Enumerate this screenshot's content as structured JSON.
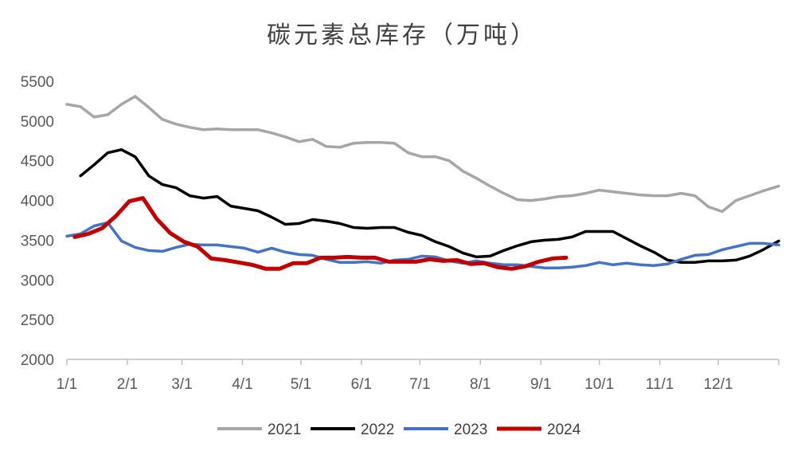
{
  "chart_data": {
    "type": "line",
    "title": "碳元素总库存（万吨）",
    "xlabel": "",
    "ylabel": "",
    "ylim": [
      2000,
      5500
    ],
    "y_ticks": [
      2000,
      2500,
      3000,
      3500,
      4000,
      4500,
      5000,
      5500
    ],
    "x_axis": {
      "unit": "day_of_year",
      "range": [
        1,
        366
      ]
    },
    "x_tick_labels": [
      {
        "label": "1/1",
        "day": 1
      },
      {
        "label": "2/1",
        "day": 32
      },
      {
        "label": "3/1",
        "day": 60
      },
      {
        "label": "4/1",
        "day": 91
      },
      {
        "label": "5/1",
        "day": 121
      },
      {
        "label": "6/1",
        "day": 152
      },
      {
        "label": "7/1",
        "day": 182
      },
      {
        "label": "8/1",
        "day": 213
      },
      {
        "label": "9/1",
        "day": 244
      },
      {
        "label": "10/1",
        "day": 274
      },
      {
        "label": "11/1",
        "day": 305
      },
      {
        "label": "12/1",
        "day": 335
      }
    ],
    "legend_position": "bottom",
    "grid": false,
    "series": [
      {
        "name": "2021",
        "color": "#a6a6a6",
        "points": [
          [
            1,
            5210
          ],
          [
            8,
            5180
          ],
          [
            15,
            5050
          ],
          [
            22,
            5080
          ],
          [
            29,
            5210
          ],
          [
            36,
            5310
          ],
          [
            43,
            5170
          ],
          [
            50,
            5020
          ],
          [
            57,
            4960
          ],
          [
            64,
            4920
          ],
          [
            71,
            4890
          ],
          [
            78,
            4900
          ],
          [
            85,
            4890
          ],
          [
            92,
            4890
          ],
          [
            99,
            4890
          ],
          [
            106,
            4850
          ],
          [
            113,
            4800
          ],
          [
            120,
            4740
          ],
          [
            127,
            4770
          ],
          [
            134,
            4680
          ],
          [
            141,
            4670
          ],
          [
            148,
            4720
          ],
          [
            155,
            4730
          ],
          [
            162,
            4730
          ],
          [
            169,
            4720
          ],
          [
            176,
            4600
          ],
          [
            183,
            4550
          ],
          [
            190,
            4550
          ],
          [
            197,
            4500
          ],
          [
            204,
            4370
          ],
          [
            211,
            4280
          ],
          [
            218,
            4180
          ],
          [
            225,
            4090
          ],
          [
            232,
            4010
          ],
          [
            239,
            4000
          ],
          [
            246,
            4020
          ],
          [
            253,
            4050
          ],
          [
            260,
            4060
          ],
          [
            267,
            4090
          ],
          [
            274,
            4130
          ],
          [
            281,
            4110
          ],
          [
            288,
            4090
          ],
          [
            295,
            4070
          ],
          [
            302,
            4060
          ],
          [
            309,
            4060
          ],
          [
            316,
            4090
          ],
          [
            323,
            4060
          ],
          [
            330,
            3920
          ],
          [
            337,
            3860
          ],
          [
            344,
            4000
          ],
          [
            351,
            4060
          ],
          [
            358,
            4120
          ],
          [
            366,
            4180
          ]
        ]
      },
      {
        "name": "2022",
        "color": "#000000",
        "points": [
          [
            8,
            4310
          ],
          [
            15,
            4450
          ],
          [
            22,
            4600
          ],
          [
            29,
            4640
          ],
          [
            36,
            4550
          ],
          [
            43,
            4310
          ],
          [
            50,
            4200
          ],
          [
            57,
            4160
          ],
          [
            64,
            4060
          ],
          [
            71,
            4030
          ],
          [
            78,
            4050
          ],
          [
            85,
            3930
          ],
          [
            92,
            3900
          ],
          [
            99,
            3870
          ],
          [
            106,
            3790
          ],
          [
            113,
            3700
          ],
          [
            120,
            3710
          ],
          [
            127,
            3760
          ],
          [
            134,
            3740
          ],
          [
            141,
            3710
          ],
          [
            148,
            3660
          ],
          [
            155,
            3650
          ],
          [
            162,
            3660
          ],
          [
            169,
            3660
          ],
          [
            176,
            3600
          ],
          [
            183,
            3560
          ],
          [
            190,
            3480
          ],
          [
            197,
            3420
          ],
          [
            204,
            3340
          ],
          [
            211,
            3290
          ],
          [
            218,
            3300
          ],
          [
            225,
            3370
          ],
          [
            232,
            3430
          ],
          [
            239,
            3480
          ],
          [
            246,
            3500
          ],
          [
            253,
            3510
          ],
          [
            260,
            3540
          ],
          [
            267,
            3610
          ],
          [
            274,
            3610
          ],
          [
            281,
            3610
          ],
          [
            288,
            3520
          ],
          [
            295,
            3430
          ],
          [
            302,
            3350
          ],
          [
            309,
            3250
          ],
          [
            316,
            3220
          ],
          [
            323,
            3220
          ],
          [
            330,
            3240
          ],
          [
            337,
            3240
          ],
          [
            344,
            3250
          ],
          [
            351,
            3300
          ],
          [
            358,
            3380
          ],
          [
            366,
            3490
          ]
        ]
      },
      {
        "name": "2023",
        "color": "#4472c4",
        "points": [
          [
            1,
            3550
          ],
          [
            8,
            3580
          ],
          [
            15,
            3680
          ],
          [
            22,
            3720
          ],
          [
            29,
            3490
          ],
          [
            36,
            3410
          ],
          [
            43,
            3370
          ],
          [
            50,
            3360
          ],
          [
            57,
            3410
          ],
          [
            64,
            3450
          ],
          [
            71,
            3440
          ],
          [
            78,
            3440
          ],
          [
            85,
            3420
          ],
          [
            92,
            3400
          ],
          [
            99,
            3350
          ],
          [
            106,
            3400
          ],
          [
            113,
            3350
          ],
          [
            120,
            3320
          ],
          [
            127,
            3310
          ],
          [
            134,
            3260
          ],
          [
            141,
            3220
          ],
          [
            148,
            3220
          ],
          [
            155,
            3230
          ],
          [
            162,
            3210
          ],
          [
            169,
            3250
          ],
          [
            176,
            3260
          ],
          [
            183,
            3300
          ],
          [
            190,
            3290
          ],
          [
            197,
            3240
          ],
          [
            204,
            3210
          ],
          [
            211,
            3240
          ],
          [
            218,
            3210
          ],
          [
            225,
            3190
          ],
          [
            232,
            3190
          ],
          [
            239,
            3170
          ],
          [
            246,
            3150
          ],
          [
            253,
            3150
          ],
          [
            260,
            3160
          ],
          [
            267,
            3180
          ],
          [
            274,
            3220
          ],
          [
            281,
            3190
          ],
          [
            288,
            3210
          ],
          [
            295,
            3190
          ],
          [
            302,
            3180
          ],
          [
            309,
            3200
          ],
          [
            316,
            3260
          ],
          [
            323,
            3310
          ],
          [
            330,
            3320
          ],
          [
            337,
            3380
          ],
          [
            344,
            3420
          ],
          [
            351,
            3460
          ],
          [
            358,
            3460
          ],
          [
            366,
            3440
          ]
        ]
      },
      {
        "name": "2024",
        "color": "#c00000",
        "points": [
          [
            5,
            3540
          ],
          [
            12,
            3580
          ],
          [
            19,
            3650
          ],
          [
            26,
            3800
          ],
          [
            33,
            3990
          ],
          [
            40,
            4030
          ],
          [
            47,
            3770
          ],
          [
            54,
            3590
          ],
          [
            61,
            3480
          ],
          [
            68,
            3420
          ],
          [
            75,
            3270
          ],
          [
            82,
            3250
          ],
          [
            89,
            3220
          ],
          [
            96,
            3190
          ],
          [
            103,
            3140
          ],
          [
            110,
            3140
          ],
          [
            117,
            3210
          ],
          [
            124,
            3210
          ],
          [
            131,
            3280
          ],
          [
            138,
            3280
          ],
          [
            145,
            3290
          ],
          [
            152,
            3280
          ],
          [
            159,
            3280
          ],
          [
            166,
            3230
          ],
          [
            173,
            3230
          ],
          [
            180,
            3230
          ],
          [
            187,
            3260
          ],
          [
            194,
            3240
          ],
          [
            201,
            3250
          ],
          [
            208,
            3200
          ],
          [
            215,
            3210
          ],
          [
            222,
            3160
          ],
          [
            229,
            3140
          ],
          [
            236,
            3170
          ],
          [
            243,
            3230
          ],
          [
            250,
            3270
          ],
          [
            257,
            3280
          ]
        ]
      }
    ]
  }
}
